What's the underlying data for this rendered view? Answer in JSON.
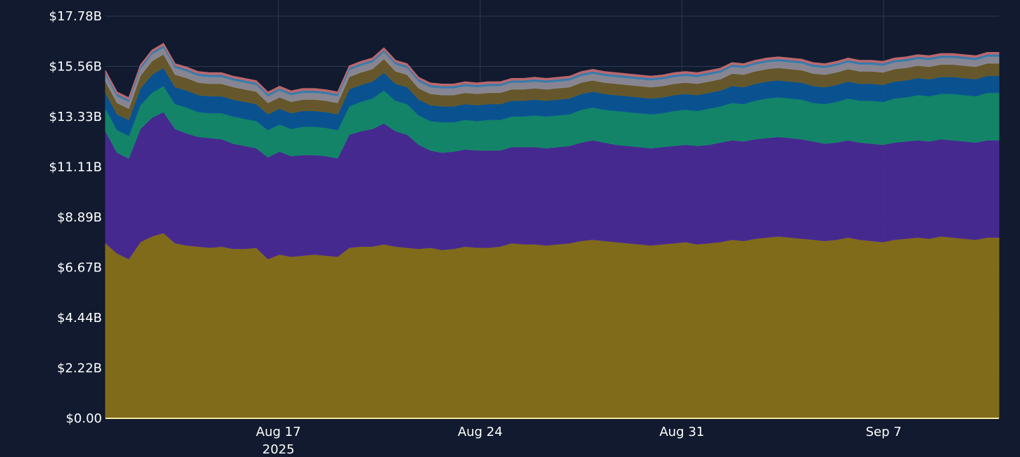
{
  "chart_data": {
    "type": "area",
    "stacked": true,
    "title": "",
    "xlabel": "",
    "ylabel": "",
    "x_start": "2025-08-11",
    "x_end": "2025-09-11",
    "x_ticks": [
      {
        "date": "2025-08-17",
        "label": "Aug 17",
        "sublabel": "2025"
      },
      {
        "date": "2025-08-24",
        "label": "Aug 24",
        "sublabel": ""
      },
      {
        "date": "2025-08-31",
        "label": "Aug 31",
        "sublabel": ""
      },
      {
        "date": "2025-09-07",
        "label": "Sep 7",
        "sublabel": ""
      }
    ],
    "y_ticks": [
      "$0.00",
      "$2.22B",
      "$4.44B",
      "$6.67B",
      "$8.89B",
      "$11.11B",
      "$13.33B",
      "$15.56B",
      "$17.78B"
    ],
    "ylim": [
      0,
      17.78
    ],
    "y_unit": "$B",
    "grid": true,
    "legend": "none",
    "series": [
      {
        "color": "#877019",
        "values": [
          7.75,
          7.3,
          7.05,
          7.8,
          8.05,
          8.2,
          7.75,
          7.65,
          7.6,
          7.55,
          7.6,
          7.5,
          7.5,
          7.55,
          7.05,
          7.25,
          7.15,
          7.2,
          7.25,
          7.2,
          7.15,
          7.55,
          7.6,
          7.6,
          7.7,
          7.6,
          7.55,
          7.5,
          7.55,
          7.45,
          7.5,
          7.6,
          7.55,
          7.55,
          7.6,
          7.75,
          7.7,
          7.7,
          7.65,
          7.7,
          7.75,
          7.85,
          7.9,
          7.85,
          7.8,
          7.75,
          7.7,
          7.65,
          7.7,
          7.75,
          7.8,
          7.7,
          7.75,
          7.8,
          7.9,
          7.85,
          7.95,
          8.0,
          8.05,
          8.0,
          7.95,
          7.9,
          7.85,
          7.9,
          8.0,
          7.9,
          7.85,
          7.8,
          7.9,
          7.95,
          8.0,
          7.95,
          8.05,
          8.0,
          7.95,
          7.9,
          8.0,
          8.0
        ]
      },
      {
        "color": "#4a2a95",
        "values": [
          4.95,
          4.45,
          4.45,
          5.0,
          5.25,
          5.35,
          5.05,
          4.95,
          4.85,
          4.85,
          4.75,
          4.65,
          4.55,
          4.4,
          4.5,
          4.55,
          4.45,
          4.45,
          4.4,
          4.4,
          4.35,
          5.0,
          5.1,
          5.2,
          5.35,
          5.1,
          5.0,
          4.6,
          4.3,
          4.3,
          4.3,
          4.3,
          4.3,
          4.3,
          4.25,
          4.25,
          4.3,
          4.3,
          4.3,
          4.3,
          4.3,
          4.35,
          4.4,
          4.35,
          4.3,
          4.3,
          4.3,
          4.3,
          4.3,
          4.3,
          4.3,
          4.35,
          4.35,
          4.4,
          4.4,
          4.4,
          4.4,
          4.4,
          4.4,
          4.4,
          4.4,
          4.35,
          4.3,
          4.3,
          4.3,
          4.3,
          4.3,
          4.3,
          4.3,
          4.3,
          4.3,
          4.3,
          4.3,
          4.3,
          4.3,
          4.3,
          4.3,
          4.3
        ]
      },
      {
        "color": "#148a6a",
        "values": [
          1.0,
          1.0,
          1.0,
          1.05,
          1.1,
          1.15,
          1.1,
          1.15,
          1.1,
          1.1,
          1.15,
          1.2,
          1.2,
          1.2,
          1.2,
          1.2,
          1.2,
          1.25,
          1.25,
          1.25,
          1.25,
          1.25,
          1.3,
          1.35,
          1.45,
          1.35,
          1.35,
          1.3,
          1.3,
          1.35,
          1.3,
          1.3,
          1.3,
          1.35,
          1.35,
          1.35,
          1.35,
          1.4,
          1.4,
          1.4,
          1.4,
          1.45,
          1.45,
          1.45,
          1.5,
          1.5,
          1.5,
          1.5,
          1.5,
          1.55,
          1.55,
          1.55,
          1.6,
          1.6,
          1.65,
          1.65,
          1.7,
          1.75,
          1.75,
          1.75,
          1.75,
          1.7,
          1.75,
          1.8,
          1.85,
          1.85,
          1.9,
          1.9,
          1.95,
          1.95,
          2.0,
          2.0,
          2.0,
          2.05,
          2.05,
          2.05,
          2.1,
          2.1
        ]
      },
      {
        "color": "#0b5595",
        "values": [
          0.7,
          0.7,
          0.7,
          0.75,
          0.8,
          0.8,
          0.75,
          0.75,
          0.75,
          0.75,
          0.75,
          0.75,
          0.75,
          0.75,
          0.7,
          0.7,
          0.7,
          0.7,
          0.7,
          0.7,
          0.7,
          0.75,
          0.75,
          0.75,
          0.8,
          0.75,
          0.75,
          0.7,
          0.7,
          0.7,
          0.7,
          0.7,
          0.7,
          0.7,
          0.7,
          0.7,
          0.7,
          0.7,
          0.7,
          0.7,
          0.7,
          0.7,
          0.7,
          0.7,
          0.7,
          0.7,
          0.7,
          0.7,
          0.7,
          0.7,
          0.7,
          0.7,
          0.7,
          0.7,
          0.75,
          0.75,
          0.75,
          0.75,
          0.75,
          0.75,
          0.75,
          0.75,
          0.75,
          0.75,
          0.75,
          0.75,
          0.75,
          0.75,
          0.75,
          0.75,
          0.75,
          0.75,
          0.75,
          0.75,
          0.75,
          0.75,
          0.75,
          0.75
        ]
      },
      {
        "color": "#6a5b2b",
        "values": [
          0.5,
          0.5,
          0.5,
          0.55,
          0.6,
          0.6,
          0.55,
          0.55,
          0.55,
          0.55,
          0.55,
          0.55,
          0.55,
          0.55,
          0.5,
          0.5,
          0.5,
          0.5,
          0.5,
          0.5,
          0.5,
          0.55,
          0.55,
          0.55,
          0.6,
          0.55,
          0.55,
          0.5,
          0.5,
          0.5,
          0.5,
          0.5,
          0.5,
          0.5,
          0.5,
          0.5,
          0.5,
          0.5,
          0.5,
          0.5,
          0.5,
          0.5,
          0.5,
          0.5,
          0.5,
          0.5,
          0.5,
          0.5,
          0.5,
          0.5,
          0.5,
          0.5,
          0.5,
          0.5,
          0.55,
          0.55,
          0.55,
          0.55,
          0.55,
          0.55,
          0.55,
          0.55,
          0.55,
          0.55,
          0.55,
          0.55,
          0.55,
          0.55,
          0.55,
          0.55,
          0.55,
          0.55,
          0.55,
          0.55,
          0.55,
          0.55,
          0.55,
          0.55
        ]
      },
      {
        "color": "#8d8b97",
        "values": [
          0.3,
          0.3,
          0.3,
          0.3,
          0.3,
          0.3,
          0.3,
          0.3,
          0.3,
          0.3,
          0.3,
          0.3,
          0.3,
          0.3,
          0.3,
          0.3,
          0.3,
          0.3,
          0.3,
          0.3,
          0.3,
          0.3,
          0.3,
          0.3,
          0.3,
          0.3,
          0.3,
          0.3,
          0.3,
          0.3,
          0.3,
          0.3,
          0.3,
          0.3,
          0.3,
          0.3,
          0.3,
          0.3,
          0.3,
          0.3,
          0.3,
          0.3,
          0.3,
          0.3,
          0.3,
          0.3,
          0.3,
          0.3,
          0.3,
          0.3,
          0.3,
          0.3,
          0.3,
          0.3,
          0.3,
          0.3,
          0.3,
          0.3,
          0.3,
          0.3,
          0.3,
          0.3,
          0.3,
          0.3,
          0.3,
          0.3,
          0.3,
          0.3,
          0.3,
          0.3,
          0.3,
          0.3,
          0.3,
          0.3,
          0.3,
          0.3,
          0.3,
          0.3
        ]
      },
      {
        "color": "#3a7fb0",
        "values": [
          0.1,
          0.1,
          0.1,
          0.1,
          0.1,
          0.1,
          0.1,
          0.1,
          0.1,
          0.1,
          0.1,
          0.1,
          0.1,
          0.1,
          0.1,
          0.1,
          0.1,
          0.1,
          0.1,
          0.1,
          0.1,
          0.1,
          0.1,
          0.1,
          0.1,
          0.1,
          0.1,
          0.1,
          0.1,
          0.1,
          0.1,
          0.1,
          0.1,
          0.1,
          0.1,
          0.1,
          0.1,
          0.1,
          0.1,
          0.1,
          0.1,
          0.1,
          0.1,
          0.1,
          0.1,
          0.1,
          0.1,
          0.1,
          0.1,
          0.1,
          0.1,
          0.1,
          0.1,
          0.1,
          0.1,
          0.1,
          0.1,
          0.1,
          0.1,
          0.1,
          0.1,
          0.1,
          0.1,
          0.1,
          0.1,
          0.1,
          0.1,
          0.1,
          0.1,
          0.1,
          0.1,
          0.1,
          0.1,
          0.1,
          0.1,
          0.1,
          0.1,
          0.1
        ]
      },
      {
        "color": "#c06a70",
        "values": [
          0.08,
          0.08,
          0.08,
          0.08,
          0.08,
          0.08,
          0.08,
          0.08,
          0.08,
          0.08,
          0.08,
          0.08,
          0.08,
          0.08,
          0.08,
          0.08,
          0.08,
          0.08,
          0.08,
          0.08,
          0.08,
          0.08,
          0.08,
          0.08,
          0.08,
          0.08,
          0.08,
          0.08,
          0.08,
          0.08,
          0.08,
          0.08,
          0.08,
          0.08,
          0.08,
          0.08,
          0.08,
          0.08,
          0.08,
          0.08,
          0.08,
          0.08,
          0.08,
          0.08,
          0.08,
          0.08,
          0.08,
          0.08,
          0.08,
          0.08,
          0.08,
          0.08,
          0.08,
          0.08,
          0.08,
          0.08,
          0.08,
          0.08,
          0.08,
          0.08,
          0.08,
          0.08,
          0.08,
          0.08,
          0.08,
          0.08,
          0.08,
          0.08,
          0.08,
          0.08,
          0.08,
          0.08,
          0.08,
          0.08,
          0.08,
          0.08,
          0.08,
          0.08
        ]
      }
    ]
  },
  "colors": {
    "background": "#111a2e",
    "grid": "#2c3a55",
    "axis_line": "#f2e6a0",
    "text": "#ffffff"
  }
}
